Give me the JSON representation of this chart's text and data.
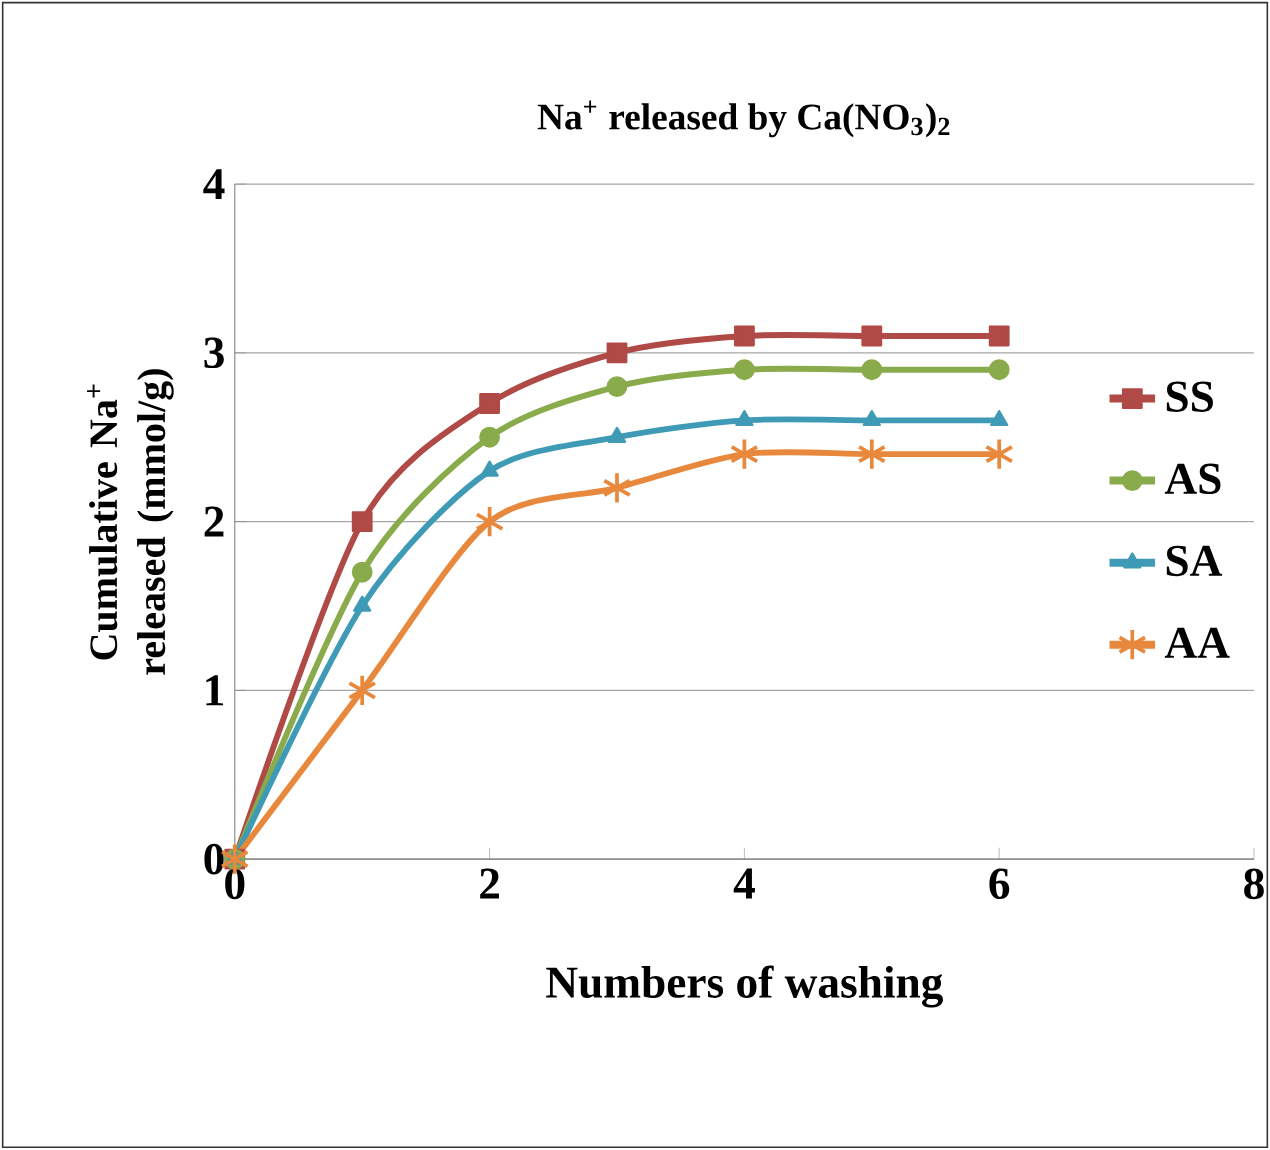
{
  "chart_data": {
    "type": "line",
    "title": "Na$^{+}$ released by Ca(NO$_{3}$)$_{2}$",
    "xlabel": "Numbers of washing",
    "ylabel": "Cumulative Na$^{+}$ released (mmol/g)",
    "x": [
      0,
      1,
      2,
      3,
      4,
      5,
      6
    ],
    "series": [
      {
        "name": "SS",
        "color": "#b04a46",
        "marker": "square",
        "values": [
          0,
          2.0,
          2.7,
          3.0,
          3.1,
          3.1,
          3.1
        ]
      },
      {
        "name": "AS",
        "color": "#8aab4c",
        "marker": "circle",
        "values": [
          0,
          1.7,
          2.5,
          2.8,
          2.9,
          2.9,
          2.9
        ]
      },
      {
        "name": "SA",
        "color": "#3f9bb5",
        "marker": "triangle",
        "values": [
          0,
          1.5,
          2.3,
          2.5,
          2.6,
          2.6,
          2.6
        ]
      },
      {
        "name": "AA",
        "color": "#e8883c",
        "marker": "cross",
        "values": [
          0,
          1.0,
          2.0,
          2.2,
          2.4,
          2.4,
          2.4
        ]
      }
    ],
    "xlim": [
      0,
      8
    ],
    "xticks": [
      0,
      2,
      4,
      6,
      8
    ],
    "ylim": [
      0,
      4
    ],
    "yticks": [
      0,
      1,
      2,
      3,
      4
    ],
    "grid": "y",
    "legend": "right",
    "line_style": "solid"
  }
}
